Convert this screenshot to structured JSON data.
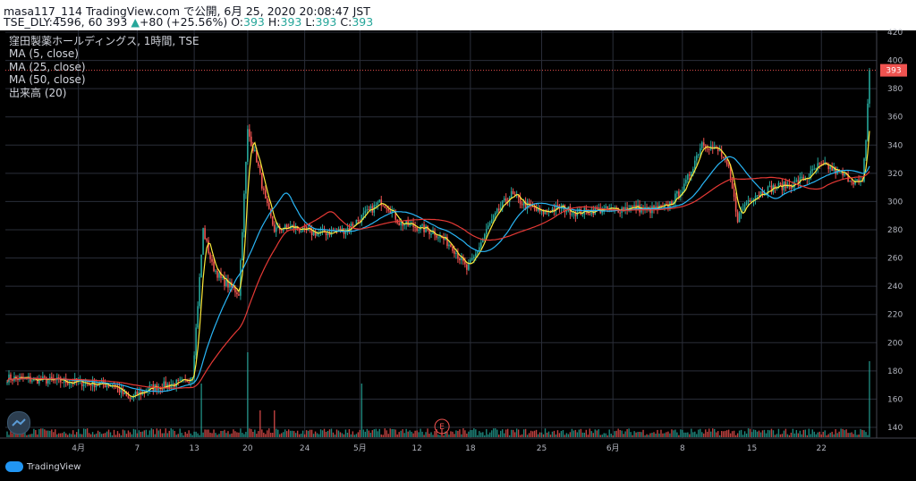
{
  "header": {
    "line1": "masa117_114 TradingView.com で公開, 6月 25, 2020 20:08:47 JST",
    "symbol": "TSE_DLY:4596, 60",
    "last": "393",
    "change_arrow": "▲",
    "change": "+80 (+25.56%)",
    "o_label": "O:",
    "o": "393",
    "h_label": "H:",
    "h": "393",
    "l_label": "L:",
    "l": "393",
    "c_label": "C:",
    "c": "393"
  },
  "legend": {
    "title": "窪田製薬ホールディングス, 1時間, TSE",
    "ma5": "MA (5, close)",
    "ma25": "MA (25, close)",
    "ma50": "MA (50, close)",
    "volume": "出来高 (20)"
  },
  "brand": {
    "text": "TradingView"
  },
  "earnings_marker": "E",
  "colors": {
    "up": "#26a69a",
    "down": "#ef5350",
    "ma5": "#ffeb3b",
    "ma25": "#29b6f6",
    "ma50": "#e53935",
    "grid": "#2a2e39",
    "price_line": "#ef5350"
  },
  "chart_data": {
    "type": "candlestick",
    "ylim": [
      130,
      420
    ],
    "y_ticks": [
      420,
      400,
      380,
      360,
      340,
      320,
      300,
      280,
      260,
      240,
      220,
      200,
      180,
      160,
      140
    ],
    "last_price_label": "393",
    "x_ticks": [
      "4月",
      "7",
      "13",
      "20",
      "24",
      "5月",
      "12",
      "18",
      "25",
      "6月",
      "8",
      "15",
      "22"
    ],
    "x_tick_bar_index": [
      40,
      73,
      105,
      135,
      167,
      198,
      230,
      260,
      300,
      340,
      379,
      418,
      457
    ],
    "n_bars": 485,
    "price_path_keypoints": [
      [
        0,
        175
      ],
      [
        40,
        172
      ],
      [
        60,
        170
      ],
      [
        68,
        160
      ],
      [
        80,
        168
      ],
      [
        100,
        172
      ],
      [
        104,
        178
      ],
      [
        106,
        210
      ],
      [
        110,
        280
      ],
      [
        115,
        255
      ],
      [
        120,
        245
      ],
      [
        130,
        235
      ],
      [
        135,
        350
      ],
      [
        140,
        330
      ],
      [
        145,
        300
      ],
      [
        150,
        280
      ],
      [
        160,
        282
      ],
      [
        170,
        278
      ],
      [
        180,
        278
      ],
      [
        190,
        280
      ],
      [
        200,
        290
      ],
      [
        210,
        300
      ],
      [
        215,
        295
      ],
      [
        220,
        285
      ],
      [
        230,
        282
      ],
      [
        240,
        278
      ],
      [
        250,
        268
      ],
      [
        258,
        252
      ],
      [
        262,
        260
      ],
      [
        270,
        282
      ],
      [
        278,
        298
      ],
      [
        283,
        305
      ],
      [
        290,
        298
      ],
      [
        300,
        292
      ],
      [
        310,
        296
      ],
      [
        320,
        292
      ],
      [
        330,
        294
      ],
      [
        340,
        294
      ],
      [
        350,
        296
      ],
      [
        360,
        294
      ],
      [
        370,
        296
      ],
      [
        380,
        310
      ],
      [
        390,
        342
      ],
      [
        400,
        335
      ],
      [
        405,
        322
      ],
      [
        410,
        288
      ],
      [
        415,
        300
      ],
      [
        420,
        305
      ],
      [
        430,
        310
      ],
      [
        440,
        312
      ],
      [
        450,
        318
      ],
      [
        455,
        325
      ],
      [
        460,
        325
      ],
      [
        470,
        318
      ],
      [
        480,
        312
      ],
      [
        482,
        345
      ],
      [
        484,
        393
      ]
    ],
    "volume_spikes": [
      [
        135,
        95
      ],
      [
        109,
        60
      ],
      [
        199,
        60
      ],
      [
        484,
        85
      ],
      [
        142,
        30
      ],
      [
        150,
        30
      ]
    ]
  }
}
